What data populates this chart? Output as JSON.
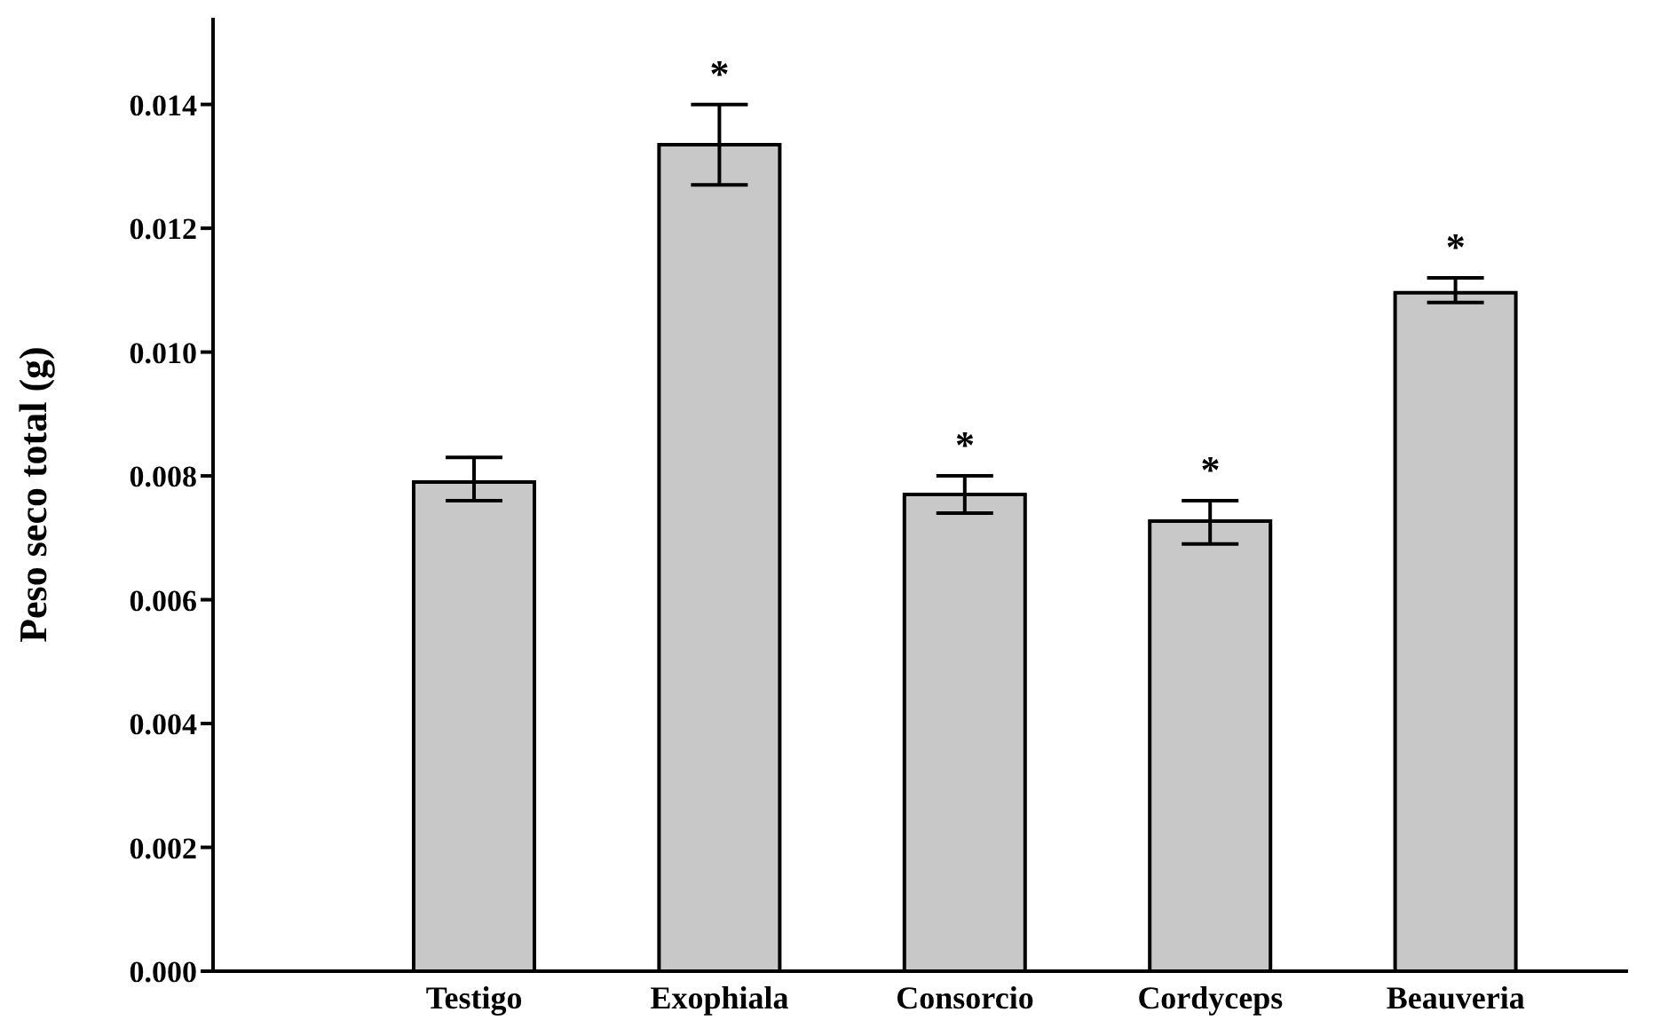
{
  "chart_data": {
    "type": "bar",
    "ylabel": "Peso seco total (g)",
    "categories": [
      "Testigo",
      "Exophiala",
      "Consorcio",
      "Cordyceps",
      "Beauveria"
    ],
    "values": [
      0.0079,
      0.01335,
      0.0077,
      0.00727,
      0.01096
    ],
    "errors": [
      [
        0.0076,
        0.0083
      ],
      [
        0.0127,
        0.014
      ],
      [
        0.0074,
        0.008
      ],
      [
        0.0069,
        0.0076
      ],
      [
        0.0108,
        0.0112
      ]
    ],
    "color": "#c8c8c8",
    "ylim": [
      0,
      0.0154
    ],
    "yticks": [
      {
        "value": 0,
        "label": "0.000"
      },
      0.002,
      0.004,
      0.006,
      0.008,
      {
        "value": 0.01,
        "label": "0.010"
      },
      0.012,
      0.014
    ],
    "grid": false,
    "legend": false,
    "annotations": [
      {
        "text": "*",
        "x": "Exophiala",
        "y": 0.014
      },
      {
        "text": "*",
        "x": "Consorcio",
        "y": 0.008
      },
      {
        "text": "*",
        "x": "Cordyceps",
        "y": 0.0076
      },
      {
        "text": "*",
        "x": "Beauveria",
        "y": 0.0112
      }
    ]
  }
}
